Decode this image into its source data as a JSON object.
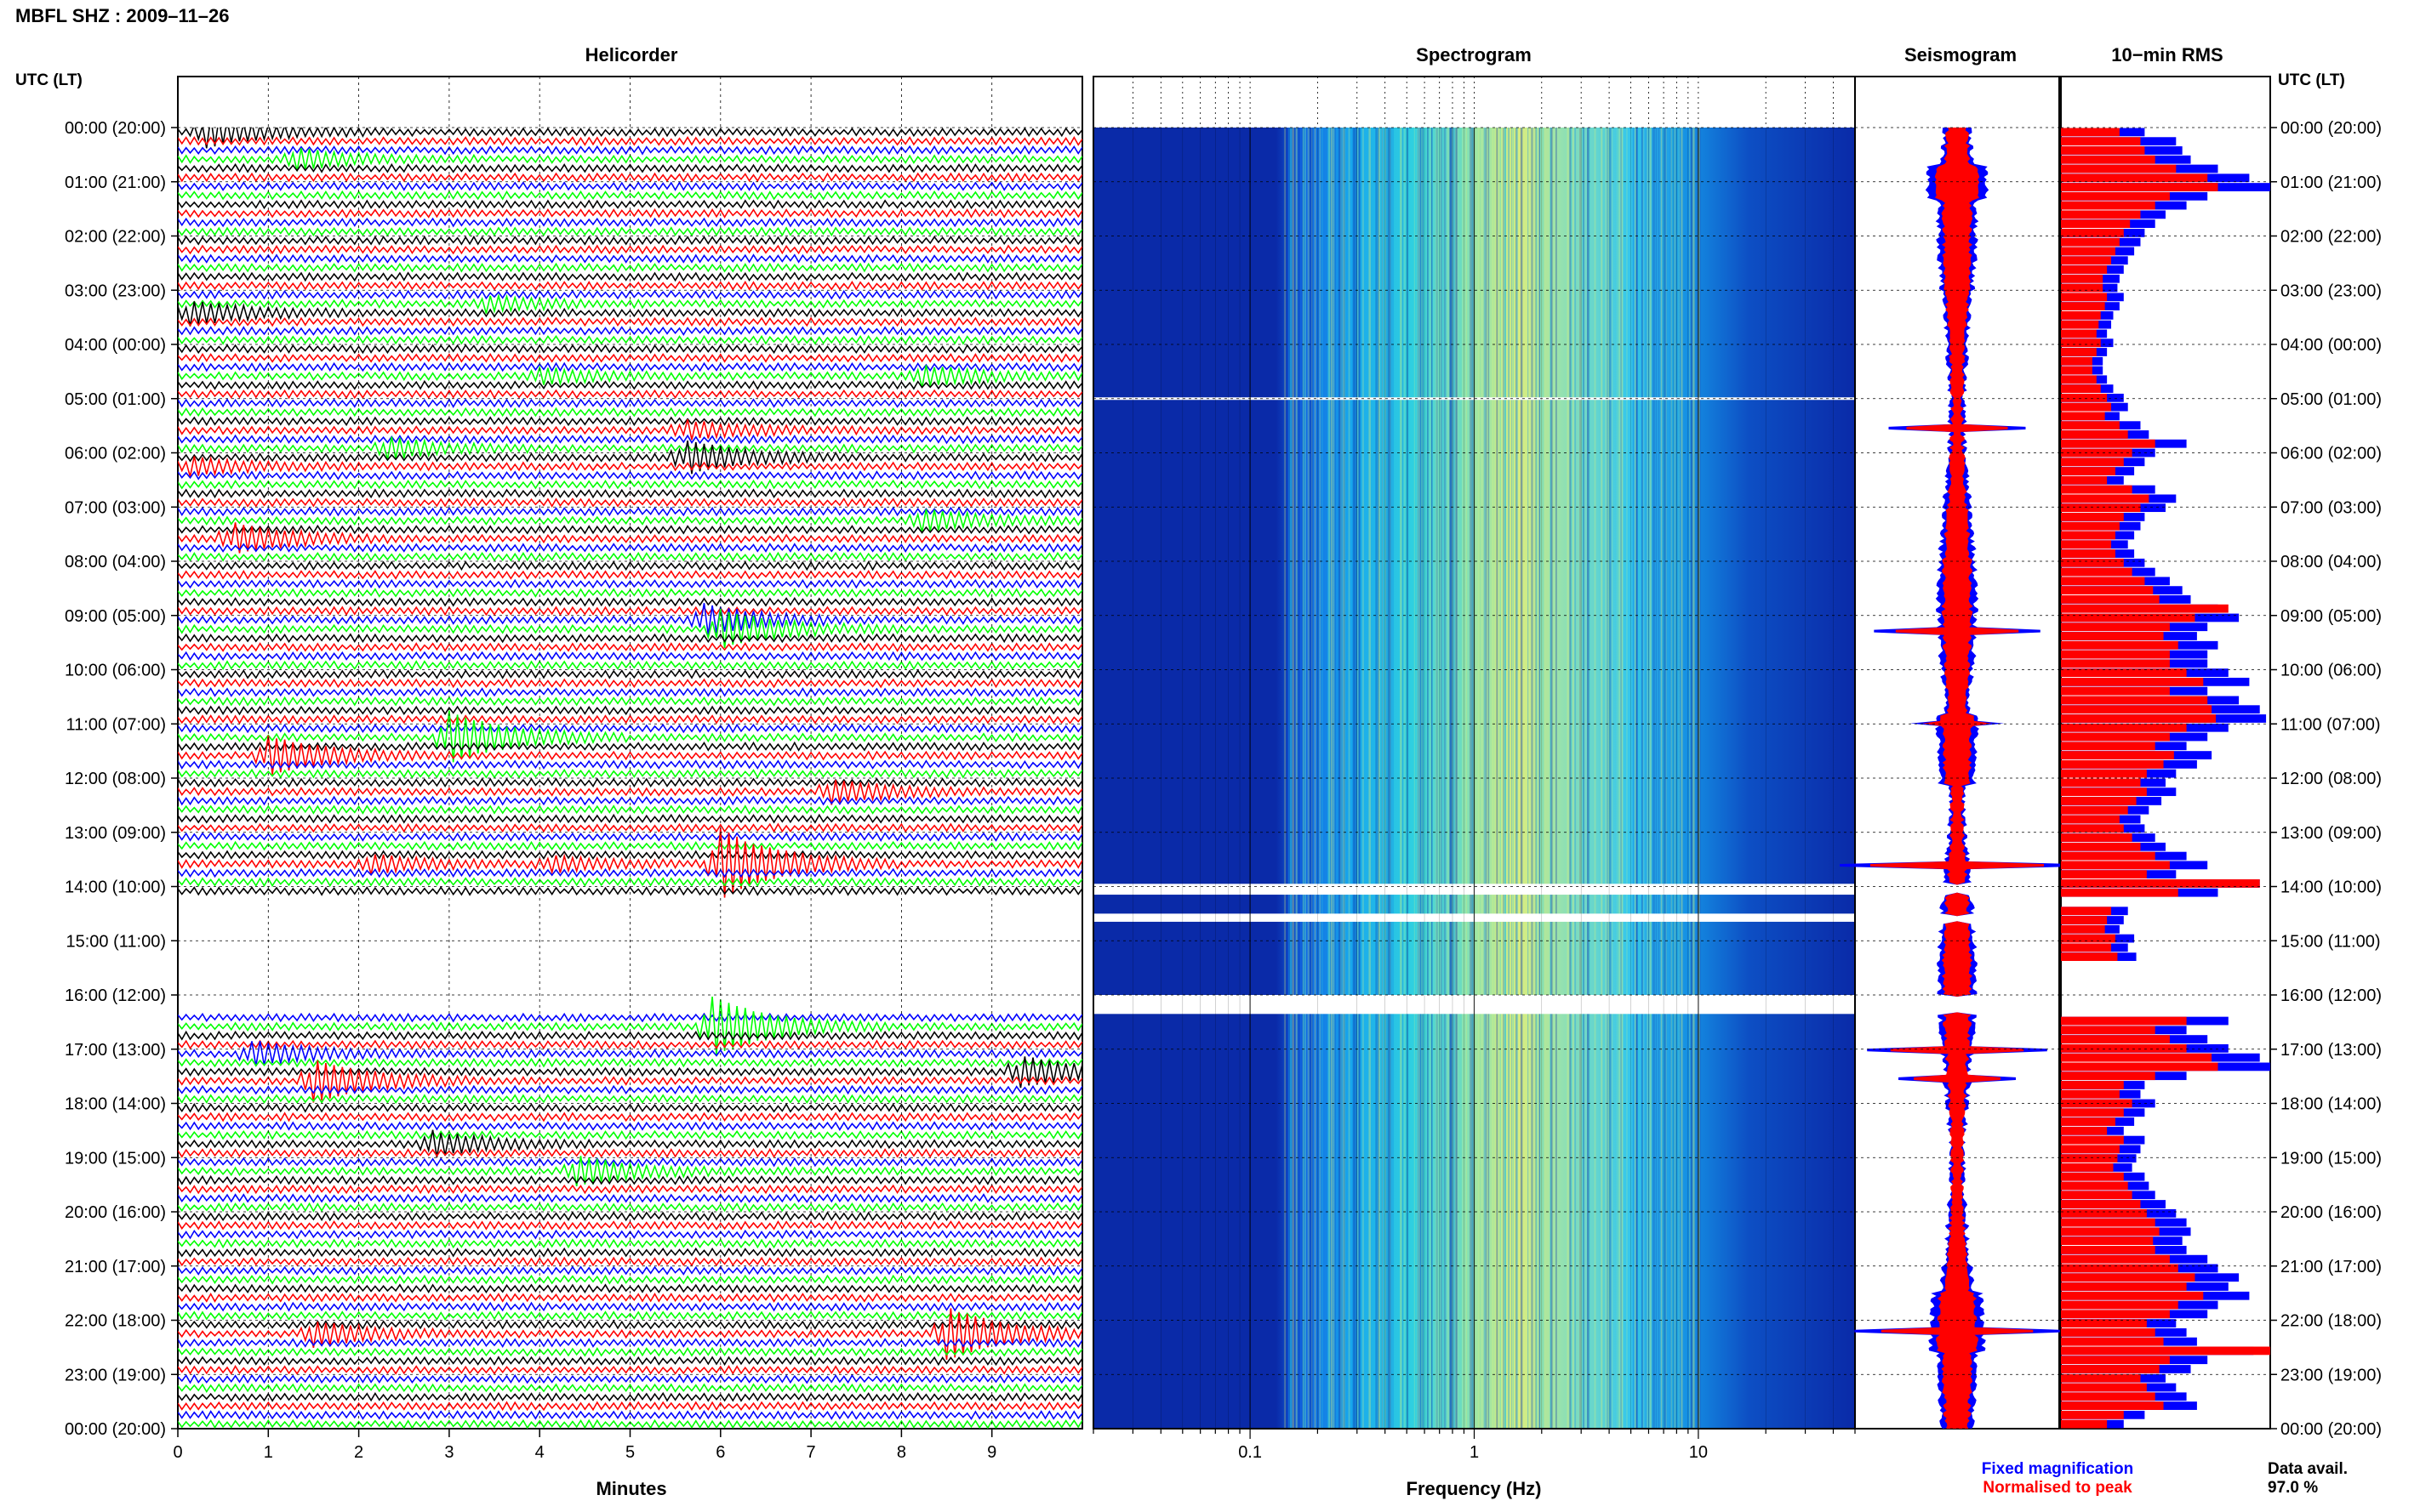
{
  "title": "MBFL SHZ : 2009–11–26",
  "left_axis_label": "UTC (LT)",
  "right_axis_label": "UTC (LT)",
  "panels": {
    "helicorder": "Helicorder",
    "spectrogram": "Spectrogram",
    "seismogram": "Seismogram",
    "rms": "10−min RMS"
  },
  "x_axis_titles": {
    "helicorder": "Minutes",
    "spectrogram": "Frequency (Hz)"
  },
  "legend": {
    "fixed": "Fixed magnification",
    "normalised": "Normalised to peak",
    "fixed_color": "#0000ff",
    "normalised_color": "#ff0000"
  },
  "data_avail": {
    "label": "Data avail.",
    "value": "97.0 %"
  },
  "trace_colors": [
    "#000000",
    "#ff0000",
    "#0000ff",
    "#00ff00"
  ],
  "chart_data": [
    {
      "type": "line",
      "panel": "helicorder",
      "xlabel": "Minutes",
      "x_ticks": [
        0,
        1,
        2,
        3,
        4,
        5,
        6,
        7,
        8,
        9
      ],
      "xlim": [
        0,
        10
      ],
      "y_ticks": [
        "00:00 (20:00)",
        "01:00 (21:00)",
        "02:00 (22:00)",
        "03:00 (23:00)",
        "04:00 (00:00)",
        "05:00 (01:00)",
        "06:00 (02:00)",
        "07:00 (03:00)",
        "08:00 (04:00)",
        "09:00 (05:00)",
        "10:00 (06:00)",
        "11:00 (07:00)",
        "12:00 (08:00)",
        "13:00 (09:00)",
        "14:00 (10:00)",
        "15:00 (11:00)",
        "16:00 (12:00)",
        "17:00 (13:00)",
        "18:00 (14:00)",
        "19:00 (15:00)",
        "20:00 (16:00)",
        "21:00 (17:00)",
        "22:00 (18:00)",
        "23:00 (19:00)",
        "00:00 (20:00)"
      ],
      "rows_per_hour": 6,
      "gap_rows": [
        85,
        86,
        87,
        88,
        89,
        90,
        91,
        92,
        93,
        94,
        95,
        96,
        97
      ],
      "events": [
        {
          "row": 0,
          "minute": 0.3,
          "amp": 1.2
        },
        {
          "row": 3,
          "minute": 1.3,
          "amp": 0.8
        },
        {
          "row": 20,
          "minute": 0.1,
          "amp": 1.0
        },
        {
          "row": 19,
          "minute": 3.4,
          "amp": 0.6
        },
        {
          "row": 27,
          "minute": 4.0,
          "amp": 0.6
        },
        {
          "row": 27,
          "minute": 8.2,
          "amp": 0.8
        },
        {
          "row": 33,
          "minute": 5.6,
          "amp": 0.7
        },
        {
          "row": 35,
          "minute": 2.3,
          "amp": 0.8
        },
        {
          "row": 36,
          "minute": 5.6,
          "amp": 1.4
        },
        {
          "row": 37,
          "minute": 0.1,
          "amp": 0.7
        },
        {
          "row": 43,
          "minute": 8.2,
          "amp": 0.9
        },
        {
          "row": 45,
          "minute": 0.6,
          "amp": 1.3
        },
        {
          "row": 54,
          "minute": 5.8,
          "amp": 1.3
        },
        {
          "row": 55,
          "minute": 6.0,
          "amp": 1.6
        },
        {
          "row": 67,
          "minute": 3.0,
          "amp": 2.2
        },
        {
          "row": 69,
          "minute": 1.0,
          "amp": 1.6
        },
        {
          "row": 73,
          "minute": 7.2,
          "amp": 1.0
        },
        {
          "row": 81,
          "minute": 2.1,
          "amp": 0.7
        },
        {
          "row": 81,
          "minute": 4.1,
          "amp": 0.6
        },
        {
          "row": 81,
          "minute": 6.0,
          "amp": 3.0
        },
        {
          "row": 99,
          "minute": 5.9,
          "amp": 2.6
        },
        {
          "row": 102,
          "minute": 0.8,
          "amp": 1.0
        },
        {
          "row": 104,
          "minute": 9.3,
          "amp": 1.3
        },
        {
          "row": 105,
          "minute": 1.5,
          "amp": 1.8
        },
        {
          "row": 112,
          "minute": 2.8,
          "amp": 1.0
        },
        {
          "row": 115,
          "minute": 4.4,
          "amp": 1.2
        },
        {
          "row": 133,
          "minute": 1.5,
          "amp": 1.0
        },
        {
          "row": 133,
          "minute": 8.5,
          "amp": 2.2
        }
      ]
    },
    {
      "type": "heatmap",
      "panel": "spectrogram",
      "xlabel": "Frequency (Hz)",
      "x_scale": "log",
      "x_ticks": [
        0.1,
        1,
        10
      ],
      "xlim": [
        0.02,
        50
      ],
      "dominant_band_hz": [
        1,
        3
      ],
      "gaps": [
        [
          13.95,
          14.15
        ],
        [
          14.5,
          14.65
        ],
        [
          16.0,
          16.35
        ]
      ]
    },
    {
      "type": "line",
      "panel": "seismogram",
      "series": [
        {
          "name": "Fixed magnification",
          "color": "#0000ff"
        },
        {
          "name": "Normalised to peak",
          "color": "#ff0000"
        }
      ]
    },
    {
      "type": "bar",
      "panel": "rms",
      "orientation": "horizontal",
      "bin_minutes": 10,
      "series": [
        {
          "name": "Fixed magnification",
          "color": "#0000ff",
          "values": [
            0.4,
            0.55,
            0.58,
            0.62,
            0.75,
            0.9,
            1.0,
            0.7,
            0.6,
            0.5,
            0.45,
            0.4,
            0.38,
            0.35,
            0.32,
            0.3,
            0.28,
            0.27,
            0.3,
            0.28,
            0.25,
            0.24,
            0.22,
            0.25,
            0.22,
            0.2,
            0.2,
            0.22,
            0.25,
            0.3,
            0.32,
            0.28,
            0.38,
            0.42,
            0.6,
            0.45,
            0.4,
            0.35,
            0.3,
            0.45,
            0.55,
            0.5,
            0.4,
            0.38,
            0.35,
            0.32,
            0.35,
            0.4,
            0.45,
            0.52,
            0.58,
            0.62,
            0.75,
            0.85,
            0.7,
            0.65,
            0.75,
            0.7,
            0.7,
            0.8,
            0.9,
            0.7,
            0.85,
            0.95,
            0.98,
            0.8,
            0.7,
            0.6,
            0.72,
            0.65,
            0.55,
            0.5,
            0.55,
            0.48,
            0.42,
            0.38,
            0.4,
            0.45,
            0.5,
            0.6,
            0.7,
            0.55,
            0.95,
            0.75,
            0.0,
            0.32,
            0.3,
            0.28,
            0.35,
            0.32,
            0.36,
            0.0,
            0.0,
            0.0,
            0.0,
            0.0,
            0.0,
            0.8,
            0.6,
            0.7,
            0.8,
            0.95,
            1.0,
            0.6,
            0.4,
            0.38,
            0.45,
            0.4,
            0.35,
            0.3,
            0.4,
            0.38,
            0.36,
            0.34,
            0.4,
            0.42,
            0.45,
            0.5,
            0.55,
            0.6,
            0.62,
            0.58,
            0.6,
            0.7,
            0.75,
            0.85,
            0.8,
            0.9,
            0.75,
            0.7,
            0.55,
            0.6,
            0.65,
            0.92,
            0.7,
            0.62,
            0.5,
            0.55,
            0.6,
            0.65,
            0.4,
            0.3
          ]
        },
        {
          "name": "Normalised to peak",
          "color": "#ff0000",
          "values": [
            0.28,
            0.38,
            0.4,
            0.45,
            0.55,
            0.7,
            0.75,
            0.52,
            0.45,
            0.38,
            0.33,
            0.3,
            0.28,
            0.26,
            0.24,
            0.22,
            0.2,
            0.2,
            0.22,
            0.21,
            0.19,
            0.18,
            0.17,
            0.19,
            0.17,
            0.15,
            0.15,
            0.17,
            0.19,
            0.22,
            0.24,
            0.21,
            0.28,
            0.32,
            0.45,
            0.34,
            0.3,
            0.26,
            0.22,
            0.34,
            0.42,
            0.38,
            0.3,
            0.28,
            0.26,
            0.24,
            0.26,
            0.3,
            0.34,
            0.4,
            0.44,
            0.47,
            0.8,
            0.64,
            0.52,
            0.49,
            0.56,
            0.52,
            0.52,
            0.6,
            0.68,
            0.52,
            0.7,
            0.72,
            0.74,
            0.6,
            0.52,
            0.45,
            0.54,
            0.49,
            0.41,
            0.38,
            0.41,
            0.36,
            0.32,
            0.28,
            0.3,
            0.34,
            0.38,
            0.45,
            0.52,
            0.41,
            0.95,
            0.56,
            0.0,
            0.24,
            0.22,
            0.21,
            0.26,
            0.24,
            0.27,
            0.0,
            0.0,
            0.0,
            0.0,
            0.0,
            0.0,
            0.6,
            0.45,
            0.52,
            0.6,
            0.72,
            0.75,
            0.45,
            0.3,
            0.28,
            0.34,
            0.3,
            0.26,
            0.22,
            0.3,
            0.28,
            0.27,
            0.25,
            0.3,
            0.32,
            0.34,
            0.38,
            0.41,
            0.45,
            0.47,
            0.44,
            0.45,
            0.52,
            0.56,
            0.64,
            0.6,
            0.68,
            0.56,
            0.52,
            0.41,
            0.45,
            0.49,
            1.0,
            0.52,
            0.47,
            0.38,
            0.41,
            0.45,
            0.49,
            0.3,
            0.22
          ]
        }
      ]
    }
  ]
}
